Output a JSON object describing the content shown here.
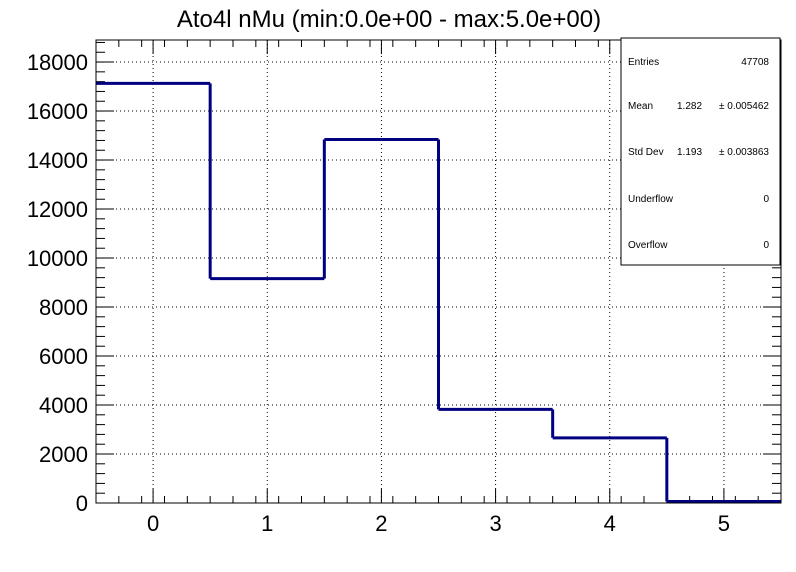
{
  "chart_data": {
    "type": "histogram",
    "title": "Ato4l nMu (min:0.0e+00 - max:5.0e+00)",
    "xlabel": "",
    "ylabel": "",
    "xlim": [
      -0.5,
      5.5
    ],
    "ylim": [
      0,
      18900
    ],
    "x_ticks": [
      "0",
      "1",
      "2",
      "3",
      "4",
      "5"
    ],
    "y_ticks": [
      "0",
      "2000",
      "4000",
      "6000",
      "8000",
      "10000",
      "12000",
      "14000",
      "16000",
      "18000"
    ],
    "bins": [
      {
        "low": -0.5,
        "high": 0.5,
        "value": 17130
      },
      {
        "low": 0.5,
        "high": 1.5,
        "value": 9160
      },
      {
        "low": 1.5,
        "high": 2.5,
        "value": 14840
      },
      {
        "low": 2.5,
        "high": 3.5,
        "value": 3820
      },
      {
        "low": 3.5,
        "high": 4.5,
        "value": 2660
      },
      {
        "low": 4.5,
        "high": 5.5,
        "value": 60
      }
    ],
    "line_color": "#000080",
    "grid": true
  },
  "stats": {
    "rows": [
      {
        "label": "Entries",
        "value": "47708"
      },
      {
        "label": "Mean",
        "value": "1.282",
        "error": "± 0.005462"
      },
      {
        "label": "Std Dev",
        "value": "1.193",
        "error": "± 0.003863"
      },
      {
        "label": "Underflow",
        "value": "0"
      },
      {
        "label": "Overflow",
        "value": "0"
      }
    ]
  }
}
